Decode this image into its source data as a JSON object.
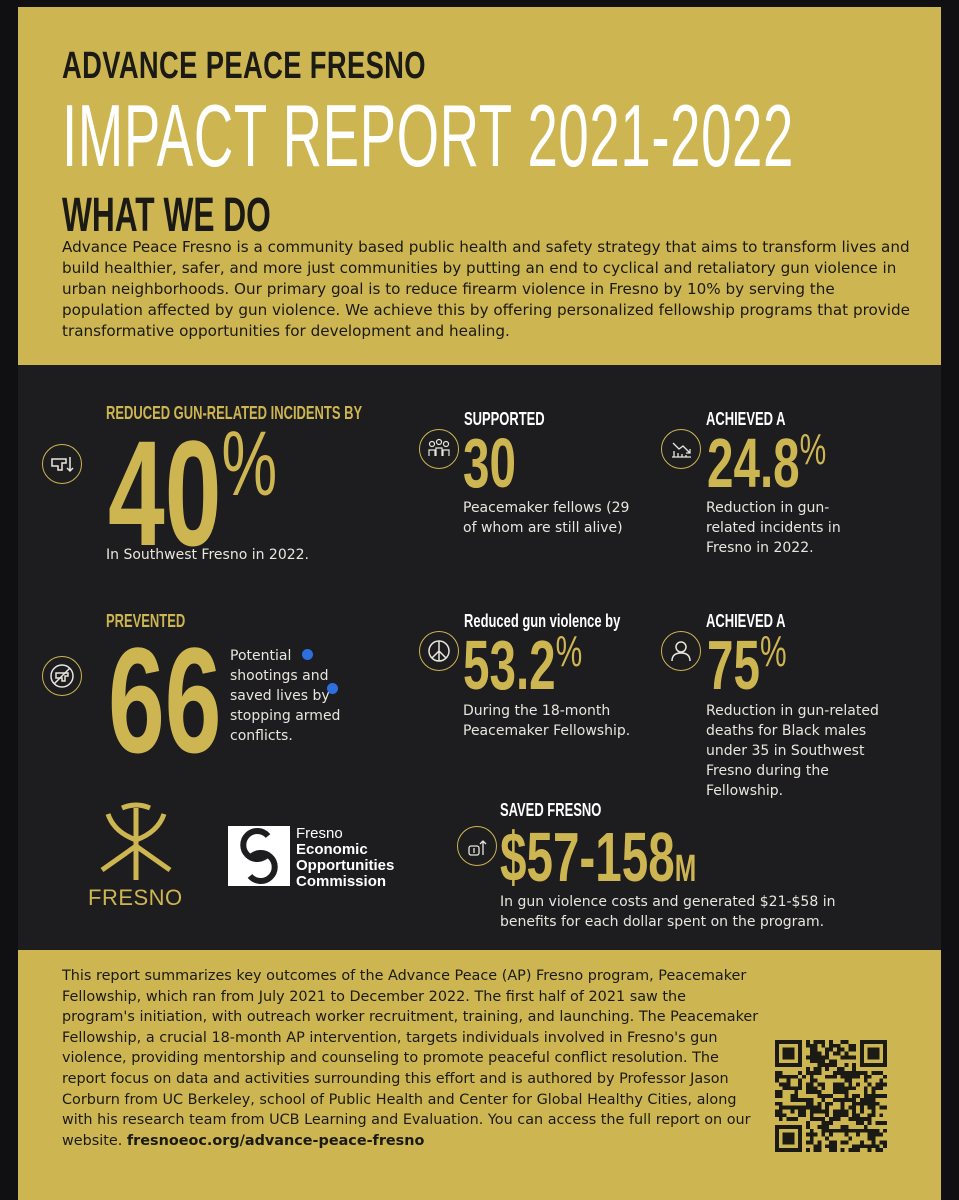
{
  "header": {
    "org": "ADVANCE PEACE FRESNO",
    "title": "IMPACT REPORT 2021-2022",
    "section": "WHAT WE DO",
    "intro": "Advance Peace Fresno is a community based public health and safety strategy that aims to transform lives and build healthier, safer, and more just communities by putting an end to cyclical and retaliatory gun violence in urban neighborhoods. Our primary goal is to reduce firearm violence in Fresno by 10% by serving the population affected by gun violence. We achieve this by offering personalized fellowship programs that provide transformative opportunities for development and healing."
  },
  "stats": {
    "s1": {
      "label": "REDUCED GUN-RELATED INCIDENTS BY",
      "value": "40",
      "unit": "%",
      "desc": "In Southwest Fresno in 2022.",
      "icon": "gun-down-icon"
    },
    "s2": {
      "label": "SUPPORTED",
      "value": "30",
      "desc": "Peacemaker fellows (29 of whom are still alive)",
      "icon": "people-icon"
    },
    "s3": {
      "label": "ACHIEVED A",
      "value": "24.8",
      "unit": "%",
      "desc": "Reduction in gun-related incidents in Fresno in 2022.",
      "icon": "chart-down-icon"
    },
    "s4": {
      "label": "PREVENTED",
      "value": "66",
      "desc": "Potential shootings and saved lives by stopping armed conflicts.",
      "icon": "no-gun-icon"
    },
    "s5": {
      "label": "Reduced gun violence by",
      "value": "53.2",
      "unit": "%",
      "desc": "During the 18-month Peacemaker Fellowship.",
      "icon": "peace-icon"
    },
    "s6": {
      "label": "ACHIEVED A",
      "value": "75",
      "unit": "%",
      "desc": "Reduction in gun-related deaths for Black males under 35 in Southwest Fresno during the Fellowship.",
      "icon": "person-icon"
    },
    "s7": {
      "label": "SAVED FRESNO",
      "value": "$57-158",
      "unit": "M",
      "desc": "In gun violence costs and generated $21-$58 in benefits for each dollar spent on the program.",
      "icon": "money-up-icon"
    }
  },
  "logos": {
    "fresno": "FRESNO",
    "eoc_line1": "Fresno",
    "eoc_line2": "Economic",
    "eoc_line3": "Opportunities",
    "eoc_line4": "Commission"
  },
  "footer": {
    "text": "This report summarizes key outcomes of the Advance Peace (AP) Fresno program, Peacemaker Fellowship, which ran from July 2021 to December 2022. The first half of 2021 saw the program's initiation, with outreach worker recruitment, training, and launching. The Peacemaker Fellowship, a crucial 18-month AP intervention, targets individuals involved in Fresno's gun violence, providing mentorship and counseling to promote peaceful conflict resolution. The report focus on data and activities surrounding this effort and is authored by Professor Jason Corburn from UC Berkeley, school of Public Health and Center for Global Healthy Cities, along with his research team from UCB Learning and Evaluation. You can access the full report on our website. ",
    "link": "fresnoeoc.org/advance-peace-fresno"
  },
  "colors": {
    "gold": "#cdb652",
    "dark": "#1d1c1e"
  }
}
